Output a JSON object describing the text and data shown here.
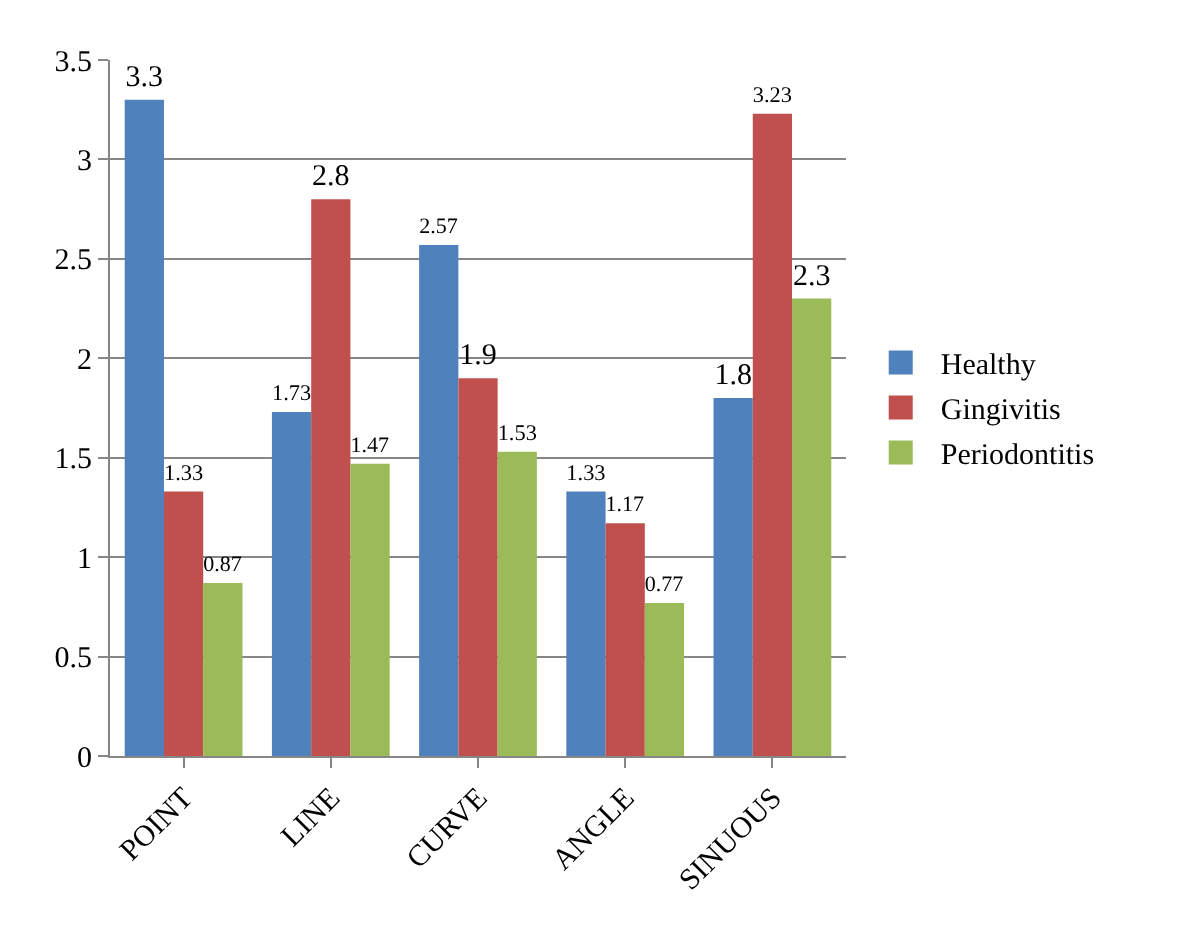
{
  "chart_data": {
    "type": "bar",
    "categories": [
      "POINT",
      "LINE",
      "CURVE",
      "ANGLE",
      "SINUOUS"
    ],
    "series": [
      {
        "name": "Healthy",
        "color": "#4f81bd",
        "values": [
          3.3,
          1.73,
          2.57,
          1.33,
          1.8
        ]
      },
      {
        "name": "Gingivitis",
        "color": "#c0504d",
        "values": [
          1.33,
          2.8,
          1.9,
          1.17,
          3.23
        ]
      },
      {
        "name": "Periodontitis",
        "color": "#9bbb59",
        "values": [
          0.87,
          1.47,
          1.53,
          0.77,
          2.3
        ]
      }
    ],
    "ylim": [
      0,
      3.5
    ],
    "yticks": [
      0,
      0.5,
      1,
      1.5,
      2,
      2.5,
      3,
      3.5
    ],
    "grid": "y",
    "legend": "right",
    "data_labels": true
  }
}
